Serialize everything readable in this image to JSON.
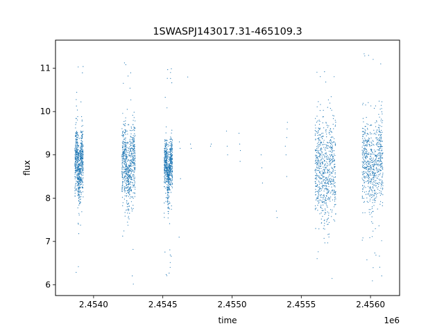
{
  "chart_data": {
    "type": "scatter",
    "title": "1SWASPJ143017.31-465109.3",
    "xlabel": "time",
    "ylabel": "flux",
    "x_offset_label": "1e6",
    "xlim": [
      2453725,
      2456210
    ],
    "ylim": [
      5.75,
      11.65
    ],
    "x_ticks": [
      2454000,
      2454500,
      2455000,
      2455500,
      2456000
    ],
    "x_tick_labels": [
      "2.4540",
      "2.4545",
      "2.4550",
      "2.4555",
      "2.4560"
    ],
    "y_ticks": [
      6,
      7,
      8,
      9,
      10,
      11
    ],
    "y_tick_labels": [
      "6",
      "7",
      "8",
      "9",
      "10",
      "11"
    ],
    "grid": false,
    "marker_color": "#1f77b4",
    "observing_seasons": [
      {
        "x_start": 2453865,
        "x_end": 2453925,
        "y_center": 8.75,
        "spread": 0.35,
        "min": 6.1,
        "max": 11.25
      },
      {
        "x_start": 2454205,
        "x_end": 2454300,
        "y_center": 8.7,
        "spread": 0.45,
        "min": 6.0,
        "max": 11.35
      },
      {
        "x_start": 2454510,
        "x_end": 2454570,
        "y_center": 8.65,
        "spread": 0.3,
        "min": 6.15,
        "max": 11.1
      },
      {
        "x_start": 2455600,
        "x_end": 2455750,
        "y_center": 8.55,
        "spread": 0.6,
        "min": 6.0,
        "max": 11.25
      },
      {
        "x_start": 2455940,
        "x_end": 2456090,
        "y_center": 8.75,
        "spread": 0.5,
        "min": 6.0,
        "max": 11.35
      }
    ],
    "sparse_points": [
      {
        "x": 2454620,
        "y": 9.3
      },
      {
        "x": 2454625,
        "y": 9.15
      },
      {
        "x": 2454628,
        "y": 8.45
      },
      {
        "x": 2454618,
        "y": 7.1
      },
      {
        "x": 2454700,
        "y": 9.25
      },
      {
        "x": 2454705,
        "y": 9.15
      },
      {
        "x": 2454680,
        "y": 10.8
      },
      {
        "x": 2454845,
        "y": 9.2
      },
      {
        "x": 2454850,
        "y": 9.25
      },
      {
        "x": 2454960,
        "y": 9.55
      },
      {
        "x": 2454965,
        "y": 9.2
      },
      {
        "x": 2454968,
        "y": 9.0
      },
      {
        "x": 2455050,
        "y": 9.5
      },
      {
        "x": 2455055,
        "y": 9.25
      },
      {
        "x": 2455060,
        "y": 9.1
      },
      {
        "x": 2455058,
        "y": 8.85
      },
      {
        "x": 2455210,
        "y": 9.0
      },
      {
        "x": 2455215,
        "y": 8.7
      },
      {
        "x": 2455220,
        "y": 8.35
      },
      {
        "x": 2455320,
        "y": 7.7
      },
      {
        "x": 2455325,
        "y": 7.55
      },
      {
        "x": 2455385,
        "y": 9.2
      },
      {
        "x": 2455390,
        "y": 9.0
      },
      {
        "x": 2455395,
        "y": 8.5
      },
      {
        "x": 2455395,
        "y": 9.4
      },
      {
        "x": 2455398,
        "y": 9.6
      },
      {
        "x": 2455400,
        "y": 9.75
      }
    ]
  }
}
